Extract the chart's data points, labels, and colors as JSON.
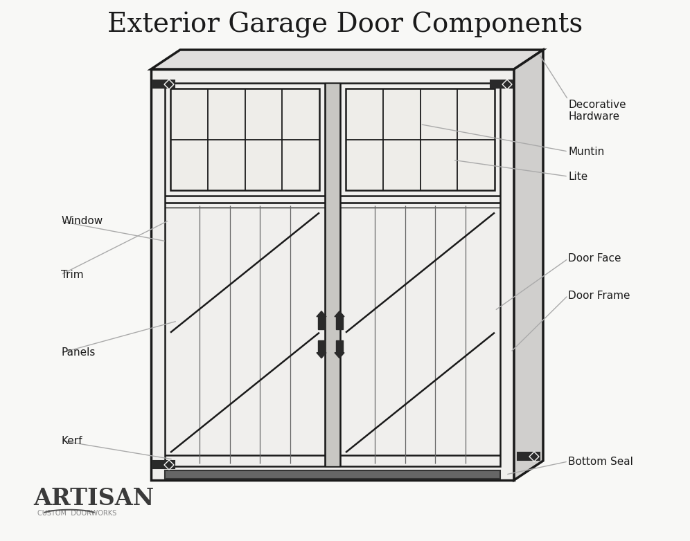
{
  "title": "Exterior Garage Door Components",
  "bg_color": "#f8f8f6",
  "line_color": "#1a1a1a",
  "label_color": "#1a1a1a",
  "annotation_color": "#aaaaaa",
  "labels": {
    "decorative_hardware": "Decorative\nHardware",
    "muntin": "Muntin",
    "lite": "Lite",
    "window": "Window",
    "trim": "Trim",
    "door_face": "Door Face",
    "door_frame": "Door Frame",
    "panels": "Panels",
    "kerf": "Kerf",
    "bottom_seal": "Bottom Seal"
  },
  "artisan_text": "ARTISAN",
  "artisan_sub": "CUSTOM  DOORWORKS",
  "title_fontsize": 28,
  "label_fontsize": 11,
  "lw_thick": 2.5,
  "lw_main": 1.8,
  "lw_thin": 1.0,
  "hw_color": "#2a2a2a",
  "frame_fill": "#f0efed",
  "top_fill": "#e0dedd",
  "right_fill": "#d0cfcd",
  "win_fill": "#eeede9",
  "mid_fill": "#c8c7c3"
}
